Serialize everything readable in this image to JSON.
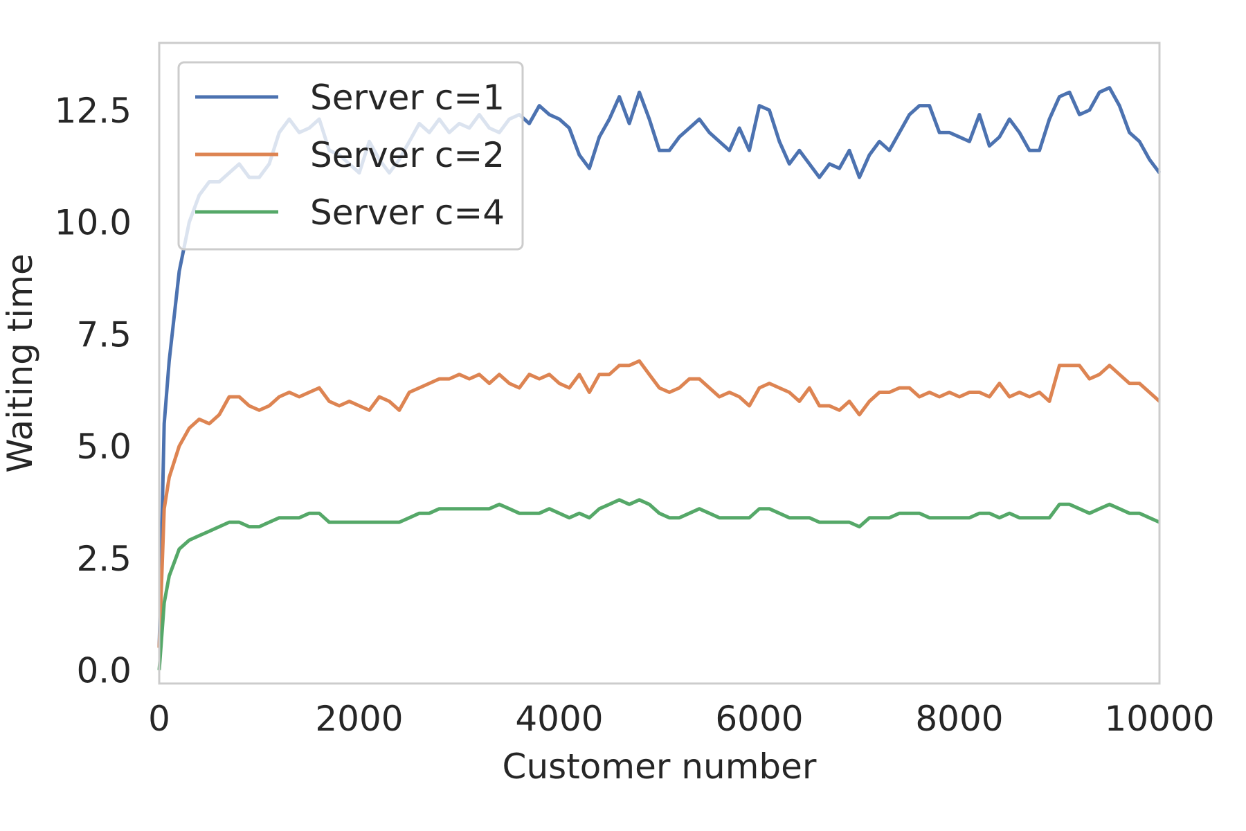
{
  "chart_data": {
    "type": "line",
    "title": "",
    "xlabel": "Customer number",
    "ylabel": "Waiting time",
    "xlim": [
      0,
      10000
    ],
    "ylim": [
      -0.3,
      14.0
    ],
    "xticks": [
      0,
      2000,
      4000,
      6000,
      8000,
      10000
    ],
    "xtick_labels": [
      "0",
      "2000",
      "4000",
      "6000",
      "8000",
      "10000"
    ],
    "yticks": [
      0.0,
      2.5,
      5.0,
      7.5,
      10.0,
      12.5
    ],
    "ytick_labels": [
      "0.0",
      "2.5",
      "5.0",
      "7.5",
      "10.0",
      "12.5"
    ],
    "grid": false,
    "legend_position": "top-left",
    "x": [
      0,
      50,
      100,
      200,
      300,
      400,
      500,
      600,
      700,
      800,
      900,
      1000,
      1100,
      1200,
      1300,
      1400,
      1500,
      1600,
      1700,
      1800,
      1900,
      2000,
      2100,
      2200,
      2300,
      2400,
      2500,
      2600,
      2700,
      2800,
      2900,
      3000,
      3100,
      3200,
      3300,
      3400,
      3500,
      3600,
      3700,
      3800,
      3900,
      4000,
      4100,
      4200,
      4300,
      4400,
      4500,
      4600,
      4700,
      4800,
      4900,
      5000,
      5100,
      5200,
      5300,
      5400,
      5500,
      5600,
      5700,
      5800,
      5900,
      6000,
      6100,
      6200,
      6300,
      6400,
      6500,
      6600,
      6700,
      6800,
      6900,
      7000,
      7100,
      7200,
      7300,
      7400,
      7500,
      7600,
      7700,
      7800,
      7900,
      8000,
      8100,
      8200,
      8300,
      8400,
      8500,
      8600,
      8700,
      8800,
      8900,
      9000,
      9100,
      9200,
      9300,
      9400,
      9500,
      9600,
      9700,
      9800,
      9900,
      10000
    ],
    "series": [
      {
        "name": "Server c=1",
        "color": "#4c72b0",
        "values": [
          0.5,
          5.5,
          6.9,
          8.9,
          10.0,
          10.6,
          10.9,
          10.9,
          11.1,
          11.3,
          11.0,
          11.0,
          11.3,
          12.0,
          12.3,
          12.0,
          12.1,
          12.3,
          11.6,
          11.5,
          11.3,
          11.1,
          11.8,
          11.4,
          11.1,
          11.4,
          11.8,
          12.2,
          12.0,
          12.3,
          12.0,
          12.2,
          12.1,
          12.4,
          12.1,
          12.0,
          12.3,
          12.4,
          12.2,
          12.6,
          12.4,
          12.3,
          12.1,
          11.5,
          11.2,
          11.9,
          12.3,
          12.8,
          12.2,
          12.9,
          12.3,
          11.6,
          11.6,
          11.9,
          12.1,
          12.3,
          12.0,
          11.8,
          11.6,
          12.1,
          11.6,
          12.6,
          12.5,
          11.8,
          11.3,
          11.6,
          11.3,
          11.0,
          11.3,
          11.2,
          11.6,
          11.0,
          11.5,
          11.8,
          11.6,
          12.0,
          12.4,
          12.6,
          12.6,
          12.0,
          12.0,
          11.9,
          11.8,
          12.4,
          11.7,
          11.9,
          12.3,
          12.0,
          11.6,
          11.6,
          12.3,
          12.8,
          12.9,
          12.4,
          12.5,
          12.9,
          13.0,
          12.6,
          12.0,
          11.8,
          11.4,
          11.1
        ]
      },
      {
        "name": "Server c=2",
        "color": "#dd8452",
        "values": [
          0.5,
          3.6,
          4.3,
          5.0,
          5.4,
          5.6,
          5.5,
          5.7,
          6.1,
          6.1,
          5.9,
          5.8,
          5.9,
          6.1,
          6.2,
          6.1,
          6.2,
          6.3,
          6.0,
          5.9,
          6.0,
          5.9,
          5.8,
          6.1,
          6.0,
          5.8,
          6.2,
          6.3,
          6.4,
          6.5,
          6.5,
          6.6,
          6.5,
          6.6,
          6.4,
          6.6,
          6.4,
          6.3,
          6.6,
          6.5,
          6.6,
          6.4,
          6.3,
          6.6,
          6.2,
          6.6,
          6.6,
          6.8,
          6.8,
          6.9,
          6.6,
          6.3,
          6.2,
          6.3,
          6.5,
          6.5,
          6.3,
          6.1,
          6.2,
          6.1,
          5.9,
          6.3,
          6.4,
          6.3,
          6.2,
          6.0,
          6.3,
          5.9,
          5.9,
          5.8,
          6.0,
          5.7,
          6.0,
          6.2,
          6.2,
          6.3,
          6.3,
          6.1,
          6.2,
          6.1,
          6.2,
          6.1,
          6.2,
          6.2,
          6.1,
          6.4,
          6.1,
          6.2,
          6.1,
          6.2,
          6.0,
          6.8,
          6.8,
          6.8,
          6.5,
          6.6,
          6.8,
          6.6,
          6.4,
          6.4,
          6.2,
          6.0
        ]
      },
      {
        "name": "Server c=4",
        "color": "#55a868",
        "values": [
          0.0,
          1.5,
          2.1,
          2.7,
          2.9,
          3.0,
          3.1,
          3.2,
          3.3,
          3.3,
          3.2,
          3.2,
          3.3,
          3.4,
          3.4,
          3.4,
          3.5,
          3.5,
          3.3,
          3.3,
          3.3,
          3.3,
          3.3,
          3.3,
          3.3,
          3.3,
          3.4,
          3.5,
          3.5,
          3.6,
          3.6,
          3.6,
          3.6,
          3.6,
          3.6,
          3.7,
          3.6,
          3.5,
          3.5,
          3.5,
          3.6,
          3.5,
          3.4,
          3.5,
          3.4,
          3.6,
          3.7,
          3.8,
          3.7,
          3.8,
          3.7,
          3.5,
          3.4,
          3.4,
          3.5,
          3.6,
          3.5,
          3.4,
          3.4,
          3.4,
          3.4,
          3.6,
          3.6,
          3.5,
          3.4,
          3.4,
          3.4,
          3.3,
          3.3,
          3.3,
          3.3,
          3.2,
          3.4,
          3.4,
          3.4,
          3.5,
          3.5,
          3.5,
          3.4,
          3.4,
          3.4,
          3.4,
          3.4,
          3.5,
          3.5,
          3.4,
          3.5,
          3.4,
          3.4,
          3.4,
          3.4,
          3.7,
          3.7,
          3.6,
          3.5,
          3.6,
          3.7,
          3.6,
          3.5,
          3.5,
          3.4,
          3.3
        ]
      }
    ]
  }
}
